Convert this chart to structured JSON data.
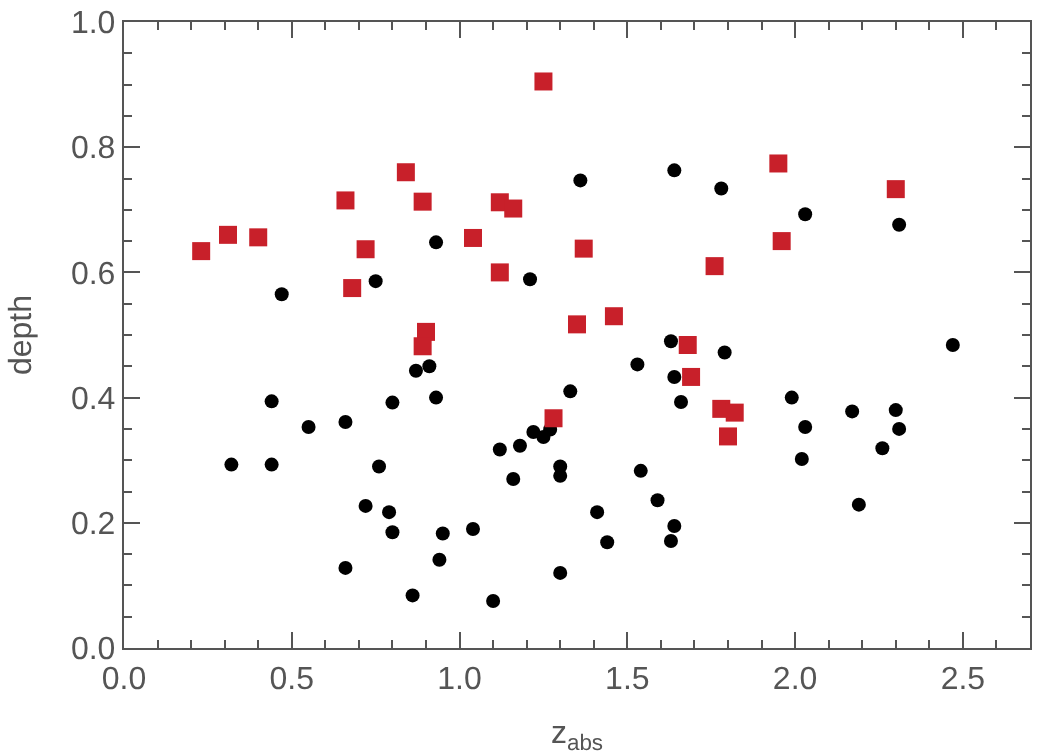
{
  "chart_data": {
    "type": "scatter",
    "xlabel": "z$_{abs}$",
    "ylabel": "depth",
    "xlim": [
      0,
      2.7
    ],
    "ylim": [
      0,
      1
    ],
    "xticks": [
      {
        "value": 0,
        "label": "0.0"
      },
      {
        "value": 0.5,
        "label": "0.5"
      },
      {
        "value": 1,
        "label": "1.0"
      },
      {
        "value": 1.5,
        "label": "1.5"
      },
      {
        "value": 2,
        "label": "2.0"
      },
      {
        "value": 2.5,
        "label": "2.5"
      }
    ],
    "yticks": [
      {
        "value": 0,
        "label": "0.0"
      },
      {
        "value": 0.2,
        "label": "0.2"
      },
      {
        "value": 0.4,
        "label": "0.4"
      },
      {
        "value": 0.6,
        "label": "0.6"
      },
      {
        "value": 0.8,
        "label": "0.8"
      },
      {
        "value": 1,
        "label": "1.0"
      }
    ],
    "series": [
      {
        "color": "#000000",
        "marker": "circle",
        "x": [
          0.47,
          0.75,
          0.93,
          1.21,
          0.87,
          0.91,
          0.93,
          0.44,
          0.32,
          0.44,
          0.55,
          0.66,
          0.66,
          0.76,
          0.72,
          0.79,
          0.8,
          0.8,
          0.86,
          0.94,
          0.95,
          1.04,
          1.1,
          1.12,
          1.16,
          1.18,
          1.22,
          1.25,
          1.27,
          1.3,
          1.3,
          1.3,
          1.33,
          1.64,
          1.66,
          1.54,
          1.41,
          1.44,
          1.59,
          1.64,
          1.63,
          1.99,
          2.03,
          2.02,
          2.17,
          2.19,
          2.26,
          2.3,
          2.31,
          2.47,
          1.36,
          1.64,
          1.78,
          2.03,
          2.31,
          1.63,
          1.53,
          1.79
        ],
        "values": [
          0.565,
          0.586,
          0.648,
          0.589,
          0.443,
          0.45,
          0.4,
          0.394,
          0.293,
          0.293,
          0.353,
          0.361,
          0.128,
          0.29,
          0.227,
          0.217,
          0.185,
          0.392,
          0.084,
          0.141,
          0.183,
          0.19,
          0.075,
          0.317,
          0.27,
          0.323,
          0.345,
          0.337,
          0.349,
          0.29,
          0.275,
          0.12,
          0.41,
          0.433,
          0.393,
          0.283,
          0.217,
          0.169,
          0.236,
          0.195,
          0.171,
          0.4,
          0.353,
          0.302,
          0.378,
          0.229,
          0.319,
          0.38,
          0.35,
          0.484,
          0.747,
          0.763,
          0.734,
          0.693,
          0.676,
          0.49,
          0.453,
          0.472
        ]
      },
      {
        "color": "#c8202a",
        "marker": "square",
        "x": [
          0.23,
          0.31,
          0.4,
          0.66,
          0.68,
          0.72,
          0.84,
          0.89,
          0.9,
          0.89,
          1.04,
          1.12,
          1.12,
          1.16,
          1.25,
          1.95,
          2.3,
          1.37,
          1.96,
          1.76,
          1.35,
          1.46,
          1.68,
          1.69,
          1.78,
          1.82,
          1.8,
          1.28
        ],
        "values": [
          0.634,
          0.66,
          0.656,
          0.715,
          0.575,
          0.637,
          0.76,
          0.713,
          0.505,
          0.482,
          0.655,
          0.6,
          0.712,
          0.702,
          0.905,
          0.774,
          0.733,
          0.638,
          0.65,
          0.61,
          0.517,
          0.53,
          0.484,
          0.433,
          0.382,
          0.376,
          0.338,
          0.367
        ]
      }
    ]
  }
}
